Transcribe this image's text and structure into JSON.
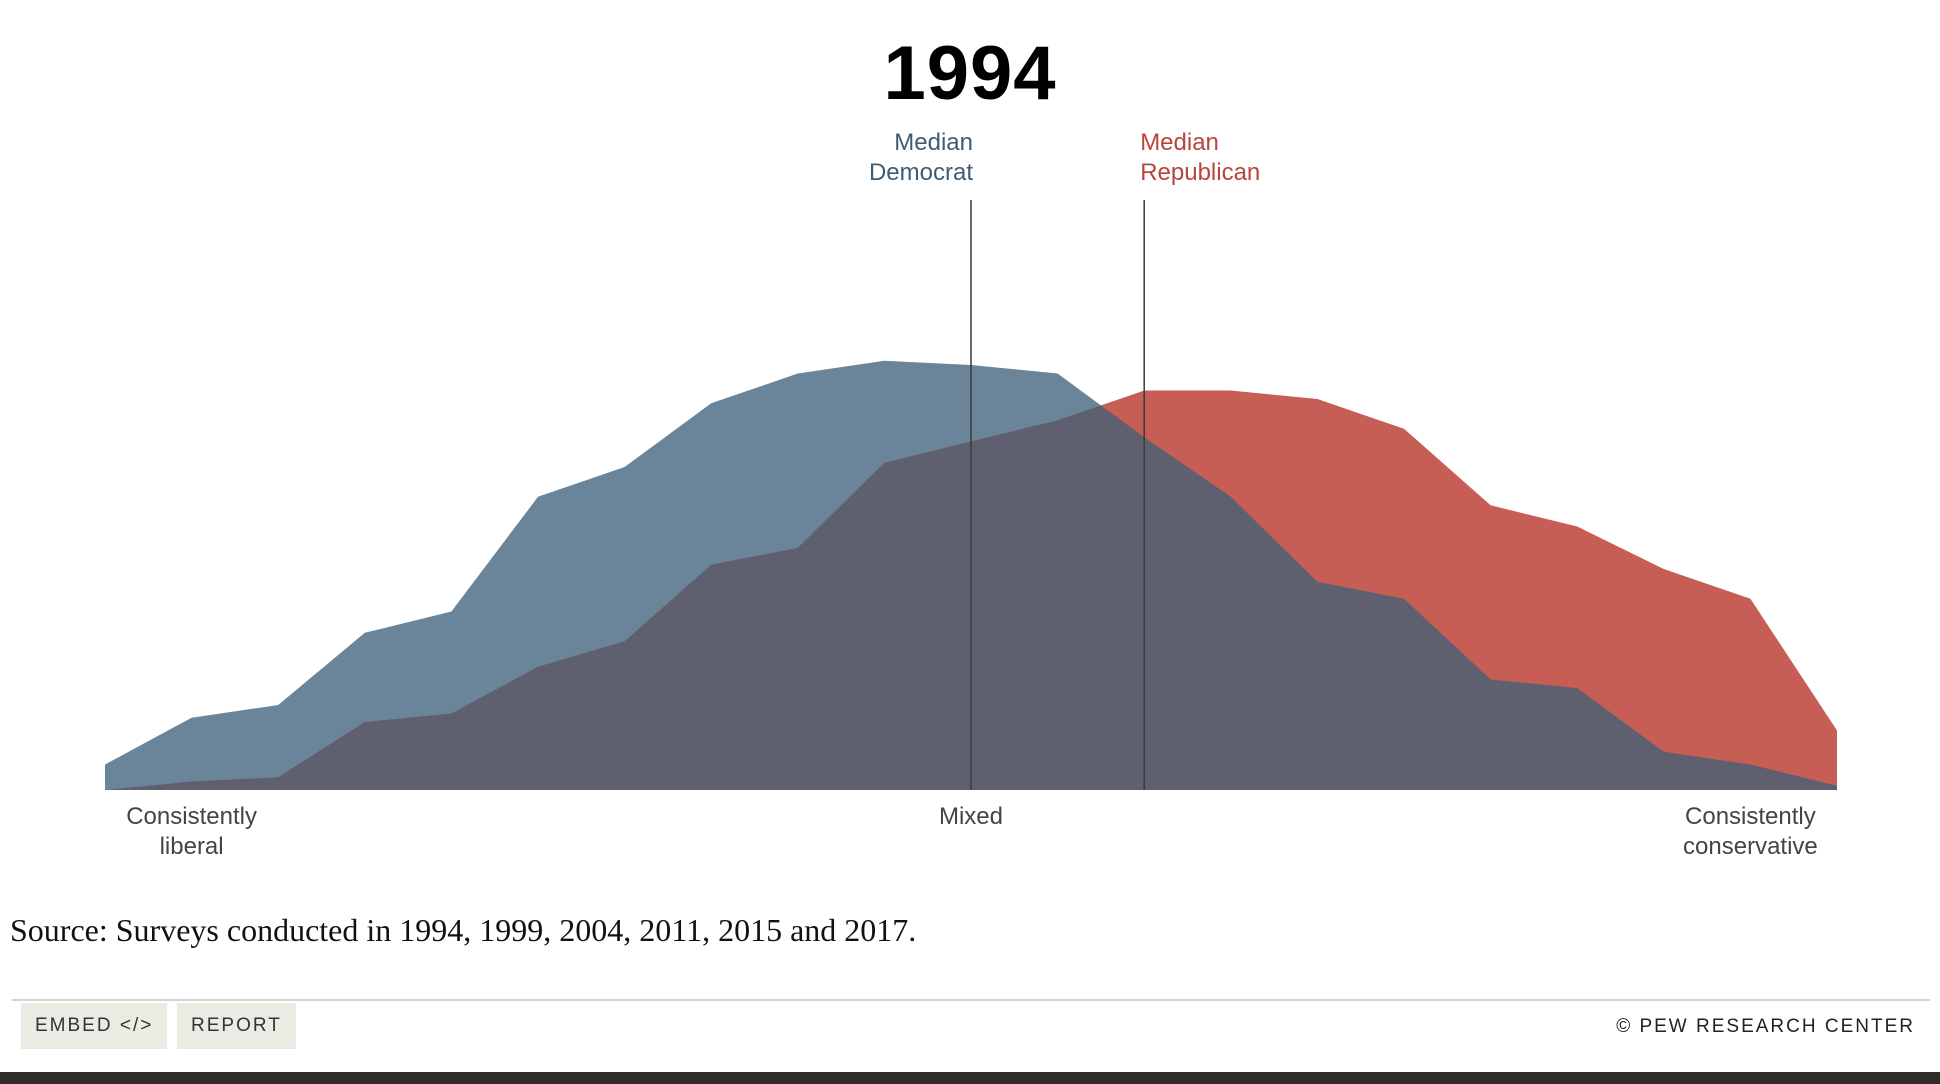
{
  "chart_data": {
    "type": "area",
    "title": "1994",
    "x": [
      1,
      2,
      3,
      4,
      5,
      6,
      7,
      8,
      9,
      10,
      11,
      12,
      13,
      14,
      15,
      16,
      17,
      18,
      19,
      20,
      21
    ],
    "xlim": [
      1,
      21
    ],
    "ylim": [
      0,
      100
    ],
    "series": [
      {
        "key": "democrat",
        "color": "#6a8499",
        "values": [
          6,
          17,
          20,
          37,
          42,
          69,
          76,
          91,
          98,
          101,
          100,
          98,
          83,
          69,
          49,
          45,
          26,
          24,
          9,
          6,
          1
        ]
      },
      {
        "key": "republican",
        "color": "#c65e55",
        "values": [
          0,
          2,
          3,
          16,
          18,
          29,
          35,
          53,
          57,
          77,
          82,
          87,
          94,
          94,
          92,
          85,
          67,
          62,
          52,
          45,
          14
        ]
      }
    ],
    "overlap_color": "#5e6070",
    "x_labels": [
      {
        "x": 2,
        "lines": [
          "Consistently",
          "liberal"
        ]
      },
      {
        "x": 11,
        "lines": [
          "Mixed"
        ]
      },
      {
        "x": 20,
        "lines": [
          "Consistently",
          "conservative"
        ]
      }
    ],
    "medians": [
      {
        "x": 11,
        "lines": [
          "Median",
          "Democrat"
        ],
        "color": "#3d5c75",
        "align": "right"
      },
      {
        "x": 13,
        "lines": [
          "Median",
          "Republican"
        ],
        "color": "#b8453a",
        "align": "left"
      }
    ],
    "grid": false
  },
  "source": "Source: Surveys conducted in 1994, 1999, 2004, 2011, 2015 and 2017.",
  "footer": {
    "embed_label": "EMBED </>",
    "report_label": "REPORT",
    "copyright": "© PEW RESEARCH CENTER"
  }
}
